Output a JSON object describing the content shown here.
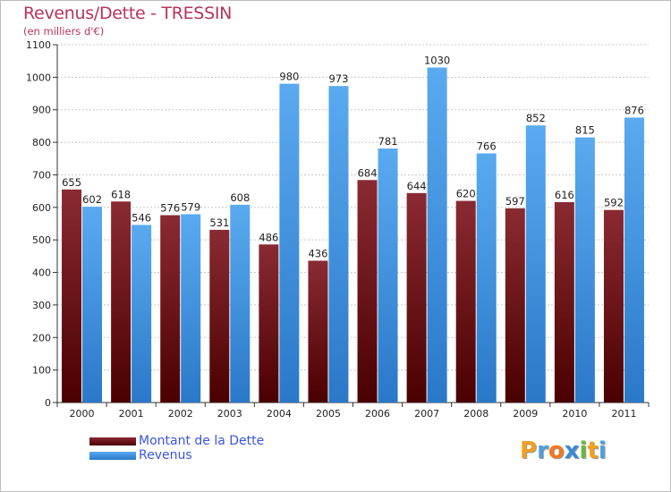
{
  "title": "Revenus/Dette - TRESSIN",
  "subtitle": "(en milliers d'€)",
  "colors": {
    "dette_top": "#8a2a32",
    "dette_bottom": "#4a0000",
    "revenus_top": "#5aaaf0",
    "revenus_bottom": "#2a78c8",
    "title": "#b8345a",
    "legend_text": "#3a55e0"
  },
  "legend": {
    "dette": "Montant de la Dette",
    "revenus": "Revenus"
  },
  "logo": {
    "letters": [
      "P",
      "r",
      "o",
      "x",
      "i",
      "t",
      "i"
    ],
    "colors": [
      "#f0a020",
      "#4aa0e0",
      "#f07820",
      "#3a8ad8",
      "#6ab83a",
      "#f0a020",
      "#4aa0e0"
    ]
  },
  "chart_data": {
    "type": "bar",
    "title": "Revenus/Dette - TRESSIN",
    "subtitle": "(en milliers d'€)",
    "categories": [
      "2000",
      "2001",
      "2002",
      "2003",
      "2004",
      "2005",
      "2006",
      "2007",
      "2008",
      "2009",
      "2010",
      "2011"
    ],
    "series": [
      {
        "name": "Montant de la Dette",
        "values": [
          655,
          618,
          576,
          531,
          486,
          436,
          684,
          644,
          620,
          597,
          616,
          592
        ]
      },
      {
        "name": "Revenus",
        "values": [
          602,
          546,
          579,
          608,
          980,
          973,
          781,
          1030,
          766,
          852,
          815,
          876
        ]
      }
    ],
    "ylim": [
      0,
      1100
    ],
    "yticks": [
      0,
      100,
      200,
      300,
      400,
      500,
      600,
      700,
      800,
      900,
      1000,
      1100
    ],
    "grid": true,
    "legend_position": "bottom-left"
  }
}
